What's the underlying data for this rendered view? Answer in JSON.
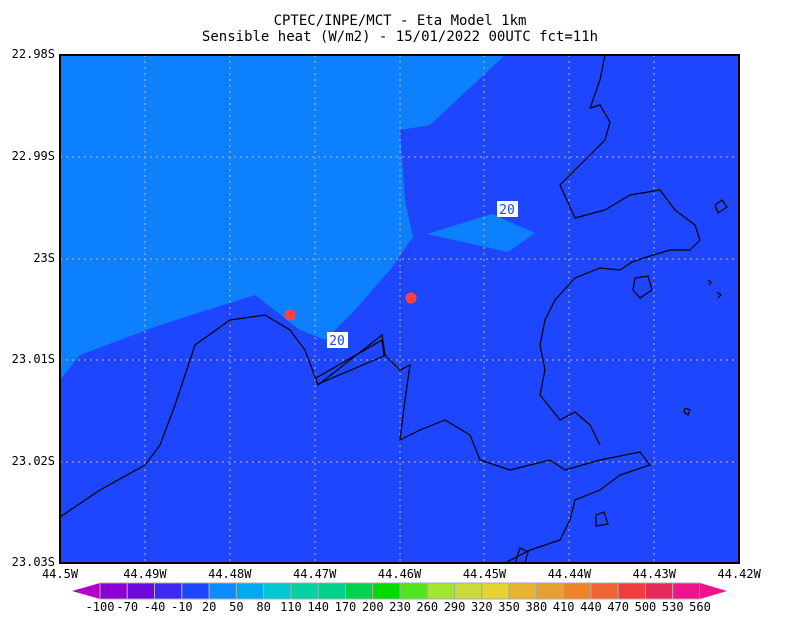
{
  "title": {
    "line1": "CPTEC/INPE/MCT -  Eta Model 1km",
    "line2": "Sensible heat (W/m2) - 15/01/2022 00UTC fct=11h"
  },
  "map": {
    "y_labels": [
      "22.98S",
      "22.99S",
      "23S",
      "23.01S",
      "23.02S",
      "23.03S"
    ],
    "x_labels": [
      "44.5W",
      "44.49W",
      "44.48W",
      "44.47W",
      "44.46W",
      "44.45W",
      "44.44W",
      "44.43W",
      "44.42W"
    ],
    "contour_labels": [
      "20",
      "20"
    ],
    "colors": {
      "field_low": "#1e46ff",
      "field_high": "#0c80ff",
      "markers": "#ff4040",
      "grid": "#c8b48c"
    }
  },
  "colorbar": {
    "labels": [
      "-100",
      "-70",
      "-40",
      "-10",
      "20",
      "50",
      "80",
      "110",
      "140",
      "170",
      "200",
      "230",
      "260",
      "290",
      "320",
      "350",
      "380",
      "410",
      "440",
      "470",
      "500",
      "530",
      "560"
    ],
    "colors": [
      "#8c00d2",
      "#6a0adc",
      "#3c28f0",
      "#1e46ff",
      "#0a8cff",
      "#00aaf0",
      "#00c8d2",
      "#00d2a0",
      "#00d28c",
      "#00d250",
      "#00dc00",
      "#50e61e",
      "#a0e632",
      "#c8dc3c",
      "#e6d232",
      "#e6b432",
      "#e6a032",
      "#f08228",
      "#f06432",
      "#f03c3c",
      "#e6285a",
      "#f0148c"
    ],
    "under_color": "#b400c8",
    "over_color": "#f0148c"
  }
}
